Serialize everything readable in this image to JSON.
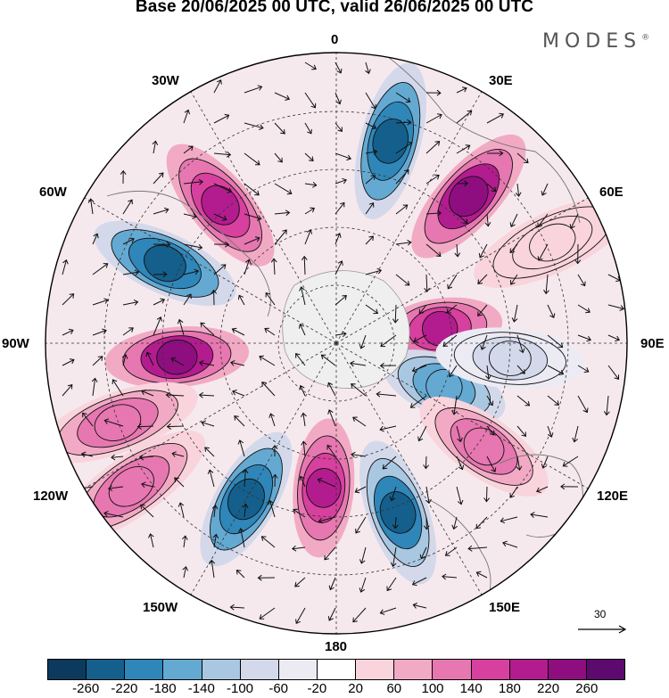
{
  "title": "Base 20/06/2025 00 UTC, valid 26/06/2025 00 UTC",
  "brand": "MODES",
  "brand_mark": "®",
  "longitude_labels": {
    "top": "0",
    "ne30": "30E",
    "e60": "60E",
    "e90": "90E",
    "e120": "120E",
    "e150": "150E",
    "bottom": "180",
    "w150": "150W",
    "w120": "120W",
    "w90": "90W",
    "w60": "60W",
    "w30": "30W"
  },
  "reference_vector_label": "30",
  "colorbar": {
    "colors": [
      "#0b3a5e",
      "#155f8c",
      "#2f86b9",
      "#64a9d2",
      "#a9c7e1",
      "#d3d9ea",
      "#ecebf4",
      "#ffffff",
      "#f9d4dc",
      "#f2aac4",
      "#e777b0",
      "#d7409e",
      "#b31c8f",
      "#8e0e80",
      "#5d0a6e"
    ],
    "ticks": [
      "-260",
      "-220",
      "-180",
      "-140",
      "-100",
      "-60",
      "-20",
      "20",
      "60",
      "100",
      "140",
      "180",
      "220",
      "260"
    ]
  },
  "map_anomalies": [
    {
      "lon": 15,
      "r": 0.72,
      "value": -260
    },
    {
      "lon": 42,
      "r": 0.68,
      "value": 240
    },
    {
      "lon": 82,
      "r": 0.36,
      "value": 200
    },
    {
      "lon": 112,
      "r": 0.4,
      "value": -180
    },
    {
      "lon": 125,
      "r": 0.62,
      "value": 140
    },
    {
      "lon": 160,
      "r": 0.62,
      "value": -240
    },
    {
      "lon": 185,
      "r": 0.5,
      "value": 200
    },
    {
      "lon": 210,
      "r": 0.62,
      "value": -260
    },
    {
      "lon": 265,
      "r": 0.55,
      "value": 240
    },
    {
      "lon": 295,
      "r": 0.65,
      "value": -260
    },
    {
      "lon": 320,
      "r": 0.62,
      "value": 200
    },
    {
      "lon": 235,
      "r": 0.86,
      "value": 140
    },
    {
      "lon": 250,
      "r": 0.8,
      "value": 140
    },
    {
      "lon": 65,
      "r": 0.82,
      "value": 60
    },
    {
      "lon": 95,
      "r": 0.6,
      "value": -80
    }
  ]
}
